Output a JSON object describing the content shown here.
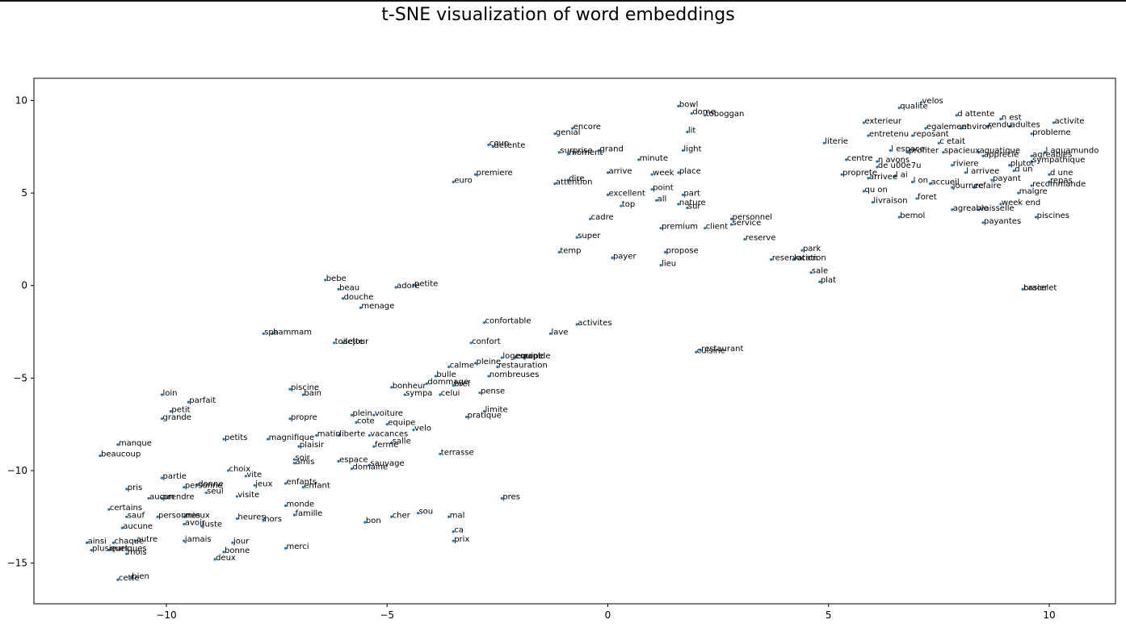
{
  "chart_data": {
    "type": "scatter",
    "title": "t-SNE visualization of word embeddings",
    "xlabel": "",
    "ylabel": "",
    "xlim": [
      -13.0,
      11.5
    ],
    "ylim": [
      -17.2,
      11.2
    ],
    "xticks": [
      -10,
      -5,
      0,
      5,
      10
    ],
    "yticks": [
      10,
      5,
      0,
      -5,
      -10,
      -15
    ],
    "xtick_labels": [
      "−10",
      "−5",
      "0",
      "5",
      "10"
    ],
    "ytick_labels": [
      "10",
      "5",
      "0",
      "−5",
      "−10",
      "−15"
    ],
    "point_color": "#1f77b4",
    "grid": false,
    "points": [
      {
        "label": "velos",
        "x": 7.1,
        "y": 9.9
      },
      {
        "label": "qualite",
        "x": 6.6,
        "y": 9.6
      },
      {
        "label": "bowl",
        "x": 1.6,
        "y": 9.7
      },
      {
        "label": "dome",
        "x": 1.9,
        "y": 9.3
      },
      {
        "label": "toboggan",
        "x": 2.2,
        "y": 9.2
      },
      {
        "label": "d attente",
        "x": 7.9,
        "y": 9.2
      },
      {
        "label": "n est",
        "x": 8.9,
        "y": 9.0
      },
      {
        "label": "activite",
        "x": 10.1,
        "y": 8.8
      },
      {
        "label": "exterieur",
        "x": 5.8,
        "y": 8.8
      },
      {
        "label": "egalement",
        "x": 7.2,
        "y": 8.5
      },
      {
        "label": "environ",
        "x": 8.0,
        "y": 8.5
      },
      {
        "label": "rendu",
        "x": 8.6,
        "y": 8.6
      },
      {
        "label": "adultes",
        "x": 9.1,
        "y": 8.6
      },
      {
        "label": "probleme",
        "x": 9.6,
        "y": 8.2
      },
      {
        "label": "entretenu",
        "x": 5.9,
        "y": 8.1
      },
      {
        "label": "reposant",
        "x": 6.9,
        "y": 8.1
      },
      {
        "label": "c etait",
        "x": 7.5,
        "y": 7.7
      },
      {
        "label": "literie",
        "x": 4.9,
        "y": 7.7
      },
      {
        "label": "l espace",
        "x": 6.4,
        "y": 7.3
      },
      {
        "label": "profiter",
        "x": 6.8,
        "y": 7.2
      },
      {
        "label": "spacieux",
        "x": 7.6,
        "y": 7.2
      },
      {
        "label": "aquatique",
        "x": 8.4,
        "y": 7.2
      },
      {
        "label": "apprecie",
        "x": 8.5,
        "y": 7.0
      },
      {
        "label": "l aquamundo",
        "x": 9.9,
        "y": 7.2
      },
      {
        "label": "agreables",
        "x": 9.6,
        "y": 7.0
      },
      {
        "label": "sympathique",
        "x": 9.6,
        "y": 6.7
      },
      {
        "label": "centre",
        "x": 5.4,
        "y": 6.8
      },
      {
        "label": "n avons",
        "x": 6.1,
        "y": 6.7
      },
      {
        "label": "de u00e7u",
        "x": 6.1,
        "y": 6.4
      },
      {
        "label": "riviere",
        "x": 7.8,
        "y": 6.5
      },
      {
        "label": "plutot",
        "x": 9.1,
        "y": 6.5
      },
      {
        "label": "d un",
        "x": 9.2,
        "y": 6.2
      },
      {
        "label": "proprete",
        "x": 5.3,
        "y": 6.0
      },
      {
        "label": "arrivee",
        "x": 5.9,
        "y": 5.8
      },
      {
        "label": "l ai",
        "x": 6.5,
        "y": 5.9
      },
      {
        "label": "l arrivee",
        "x": 8.1,
        "y": 6.1
      },
      {
        "label": "d une",
        "x": 10.0,
        "y": 6.0
      },
      {
        "label": "payant",
        "x": 8.7,
        "y": 5.7
      },
      {
        "label": "l on",
        "x": 6.9,
        "y": 5.6
      },
      {
        "label": "accueil",
        "x": 7.3,
        "y": 5.5
      },
      {
        "label": "journee",
        "x": 7.8,
        "y": 5.3
      },
      {
        "label": "refaire",
        "x": 8.3,
        "y": 5.3
      },
      {
        "label": "repas",
        "x": 10.0,
        "y": 5.6
      },
      {
        "label": "recommande",
        "x": 9.6,
        "y": 5.4
      },
      {
        "label": "qu on",
        "x": 5.8,
        "y": 5.1
      },
      {
        "label": "malgre",
        "x": 9.3,
        "y": 5.0
      },
      {
        "label": "foret",
        "x": 7.0,
        "y": 4.7
      },
      {
        "label": "livraison",
        "x": 6.0,
        "y": 4.5
      },
      {
        "label": "week end",
        "x": 8.9,
        "y": 4.4
      },
      {
        "label": "agreable",
        "x": 7.8,
        "y": 4.1
      },
      {
        "label": "vaisselle",
        "x": 8.4,
        "y": 4.1
      },
      {
        "label": "bemol",
        "x": 6.6,
        "y": 3.7
      },
      {
        "label": "piscines",
        "x": 9.7,
        "y": 3.7
      },
      {
        "label": "payantes",
        "x": 8.5,
        "y": 3.4
      },
      {
        "label": "lit",
        "x": 1.8,
        "y": 8.3
      },
      {
        "label": "light",
        "x": 1.7,
        "y": 7.3
      },
      {
        "label": "encore",
        "x": -0.8,
        "y": 8.5
      },
      {
        "label": "genial",
        "x": -1.2,
        "y": 8.2
      },
      {
        "label": "coup",
        "x": -2.7,
        "y": 7.6
      },
      {
        "label": "detente",
        "x": -2.6,
        "y": 7.5
      },
      {
        "label": "surprise",
        "x": -1.1,
        "y": 7.2
      },
      {
        "label": "moment",
        "x": -0.9,
        "y": 7.1
      },
      {
        "label": "grand",
        "x": -0.2,
        "y": 7.3
      },
      {
        "label": "minute",
        "x": 0.7,
        "y": 6.8
      },
      {
        "label": "premiere",
        "x": -3.0,
        "y": 6.0
      },
      {
        "label": "arrive",
        "x": 0.0,
        "y": 6.1
      },
      {
        "label": "week",
        "x": 1.0,
        "y": 6.0
      },
      {
        "label": "place",
        "x": 1.6,
        "y": 6.1
      },
      {
        "label": "euro",
        "x": -3.5,
        "y": 5.6
      },
      {
        "label": "dire",
        "x": -0.9,
        "y": 5.7
      },
      {
        "label": "attention",
        "x": -1.2,
        "y": 5.5
      },
      {
        "label": "point",
        "x": 1.0,
        "y": 5.2
      },
      {
        "label": "excellent",
        "x": 0.0,
        "y": 4.9
      },
      {
        "label": "part",
        "x": 1.7,
        "y": 4.9
      },
      {
        "label": "all",
        "x": 1.1,
        "y": 4.6
      },
      {
        "label": "top",
        "x": 0.3,
        "y": 4.3
      },
      {
        "label": "nature",
        "x": 1.6,
        "y": 4.4
      },
      {
        "label": "sur",
        "x": 1.8,
        "y": 4.2
      },
      {
        "label": "cadre",
        "x": -0.4,
        "y": 3.6
      },
      {
        "label": "personnel",
        "x": 2.8,
        "y": 3.6
      },
      {
        "label": "service",
        "x": 2.8,
        "y": 3.3
      },
      {
        "label": "client",
        "x": 2.2,
        "y": 3.1
      },
      {
        "label": "premium",
        "x": 1.2,
        "y": 3.1
      },
      {
        "label": "super",
        "x": -0.7,
        "y": 2.6
      },
      {
        "label": "reserve",
        "x": 3.1,
        "y": 2.5
      },
      {
        "label": "temp",
        "x": -1.1,
        "y": 1.8
      },
      {
        "label": "payer",
        "x": 0.1,
        "y": 1.5
      },
      {
        "label": "propose",
        "x": 1.3,
        "y": 1.8
      },
      {
        "label": "lieu",
        "x": 1.2,
        "y": 1.1
      },
      {
        "label": "park",
        "x": 4.4,
        "y": 1.9
      },
      {
        "label": "reservation",
        "x": 3.7,
        "y": 1.4
      },
      {
        "label": "location",
        "x": 4.2,
        "y": 1.4
      },
      {
        "label": "sale",
        "x": 4.6,
        "y": 0.7
      },
      {
        "label": "plat",
        "x": 4.8,
        "y": 0.2
      },
      {
        "label": "bracelet",
        "x": 9.4,
        "y": -0.2
      },
      {
        "label": "casier",
        "x": 9.4,
        "y": -0.2
      },
      {
        "label": "bebe",
        "x": -6.4,
        "y": 0.3
      },
      {
        "label": "beau",
        "x": -6.1,
        "y": -0.2
      },
      {
        "label": "adore",
        "x": -4.8,
        "y": -0.1
      },
      {
        "label": "petite",
        "x": -4.4,
        "y": 0.0
      },
      {
        "label": "douche",
        "x": -6.0,
        "y": -0.7
      },
      {
        "label": "menage",
        "x": -5.6,
        "y": -1.2
      },
      {
        "label": "confortable",
        "x": -2.8,
        "y": -2.0
      },
      {
        "label": "activites",
        "x": -0.7,
        "y": -2.1
      },
      {
        "label": "spa",
        "x": -7.8,
        "y": -2.6
      },
      {
        "label": "hammam",
        "x": -7.6,
        "y": -2.6
      },
      {
        "label": "lave",
        "x": -1.3,
        "y": -2.6
      },
      {
        "label": "toilette",
        "x": -6.2,
        "y": -3.1
      },
      {
        "label": "sejour",
        "x": -6.0,
        "y": -3.1
      },
      {
        "label": "confort",
        "x": -3.1,
        "y": -3.1
      },
      {
        "label": "restaurant",
        "x": 2.1,
        "y": -3.5
      },
      {
        "label": "cuisine",
        "x": 2.0,
        "y": -3.6
      },
      {
        "label": "logement",
        "x": -2.4,
        "y": -3.9
      },
      {
        "label": "equipe",
        "x": -2.1,
        "y": -3.9
      },
      {
        "label": "rapide",
        "x": -1.9,
        "y": -3.9
      },
      {
        "label": "pleine",
        "x": -3.0,
        "y": -4.2
      },
      {
        "label": "calme",
        "x": -3.6,
        "y": -4.4
      },
      {
        "label": "restauration",
        "x": -2.5,
        "y": -4.4
      },
      {
        "label": "bulle",
        "x": -3.9,
        "y": -4.9
      },
      {
        "label": "nombreuses",
        "x": -2.7,
        "y": -4.9
      },
      {
        "label": "dommage",
        "x": -4.1,
        "y": -5.3
      },
      {
        "label": "bonheur",
        "x": -4.9,
        "y": -5.5
      },
      {
        "label": "bref",
        "x": -3.5,
        "y": -5.4
      },
      {
        "label": "sympa",
        "x": -4.6,
        "y": -5.9
      },
      {
        "label": "celui",
        "x": -3.8,
        "y": -5.9
      },
      {
        "label": "pense",
        "x": -2.9,
        "y": -5.8
      },
      {
        "label": "piscine",
        "x": -7.2,
        "y": -5.6
      },
      {
        "label": "bain",
        "x": -6.9,
        "y": -5.9
      },
      {
        "label": "loin",
        "x": -10.1,
        "y": -5.9
      },
      {
        "label": "parfait",
        "x": -9.5,
        "y": -6.3
      },
      {
        "label": "petit",
        "x": -9.9,
        "y": -6.8
      },
      {
        "label": "grande",
        "x": -10.1,
        "y": -7.2
      },
      {
        "label": "limite",
        "x": -2.8,
        "y": -6.8
      },
      {
        "label": "pratique",
        "x": -3.2,
        "y": -7.1
      },
      {
        "label": "plein",
        "x": -5.8,
        "y": -7.0
      },
      {
        "label": "voiture",
        "x": -5.3,
        "y": -7.0
      },
      {
        "label": "propre",
        "x": -7.2,
        "y": -7.2
      },
      {
        "label": "cote",
        "x": -5.7,
        "y": -7.4
      },
      {
        "label": "equipe",
        "x": -5.0,
        "y": -7.5
      },
      {
        "label": "velo",
        "x": -4.4,
        "y": -7.8
      },
      {
        "label": "matin",
        "x": -6.6,
        "y": -8.1
      },
      {
        "label": "liberte",
        "x": -6.1,
        "y": -8.1
      },
      {
        "label": "vacances",
        "x": -5.4,
        "y": -8.1
      },
      {
        "label": "petits",
        "x": -8.7,
        "y": -8.3
      },
      {
        "label": "magnifique",
        "x": -7.7,
        "y": -8.3
      },
      {
        "label": "salle",
        "x": -4.9,
        "y": -8.5
      },
      {
        "label": "ferme",
        "x": -5.3,
        "y": -8.7
      },
      {
        "label": "plaisir",
        "x": -7.0,
        "y": -8.7
      },
      {
        "label": "terrasse",
        "x": -3.8,
        "y": -9.1
      },
      {
        "label": "manque",
        "x": -11.1,
        "y": -8.6
      },
      {
        "label": "beaucoup",
        "x": -11.5,
        "y": -9.2
      },
      {
        "label": "soir",
        "x": -7.1,
        "y": -9.4
      },
      {
        "label": "amis",
        "x": -7.1,
        "y": -9.6
      },
      {
        "label": "espace",
        "x": -6.1,
        "y": -9.5
      },
      {
        "label": "sauvage",
        "x": -5.4,
        "y": -9.7
      },
      {
        "label": "domaine",
        "x": -5.8,
        "y": -9.9
      },
      {
        "label": "choix",
        "x": -8.6,
        "y": -10.0
      },
      {
        "label": "vite",
        "x": -8.2,
        "y": -10.3
      },
      {
        "label": "partie",
        "x": -10.1,
        "y": -10.4
      },
      {
        "label": "enfants",
        "x": -7.3,
        "y": -10.7
      },
      {
        "label": "enfant",
        "x": -6.9,
        "y": -10.9
      },
      {
        "label": "donne",
        "x": -9.3,
        "y": -10.8
      },
      {
        "label": "personne",
        "x": -9.6,
        "y": -10.9
      },
      {
        "label": "jeux",
        "x": -8.0,
        "y": -10.8
      },
      {
        "label": "pris",
        "x": -10.9,
        "y": -11.0
      },
      {
        "label": "seul",
        "x": -9.1,
        "y": -11.2
      },
      {
        "label": "visite",
        "x": -8.4,
        "y": -11.4
      },
      {
        "label": "aucun",
        "x": -10.4,
        "y": -11.5
      },
      {
        "label": "prendre",
        "x": -10.1,
        "y": -11.5
      },
      {
        "label": "pres",
        "x": -2.4,
        "y": -11.5
      },
      {
        "label": "certains",
        "x": -11.3,
        "y": -12.1
      },
      {
        "label": "monde",
        "x": -7.3,
        "y": -11.9
      },
      {
        "label": "sauf",
        "x": -10.9,
        "y": -12.5
      },
      {
        "label": "personnes",
        "x": -10.2,
        "y": -12.5
      },
      {
        "label": "mieux",
        "x": -9.6,
        "y": -12.5
      },
      {
        "label": "famille",
        "x": -7.1,
        "y": -12.4
      },
      {
        "label": "sou",
        "x": -4.3,
        "y": -12.3
      },
      {
        "label": "cher",
        "x": -4.9,
        "y": -12.5
      },
      {
        "label": "mal",
        "x": -3.6,
        "y": -12.5
      },
      {
        "label": "heures",
        "x": -8.4,
        "y": -12.6
      },
      {
        "label": "hors",
        "x": -7.8,
        "y": -12.7
      },
      {
        "label": "bon",
        "x": -5.5,
        "y": -12.8
      },
      {
        "label": "avoir",
        "x": -9.6,
        "y": -12.9
      },
      {
        "label": "juste",
        "x": -9.2,
        "y": -13.0
      },
      {
        "label": "aucune",
        "x": -11.0,
        "y": -13.1
      },
      {
        "label": "ca",
        "x": -3.5,
        "y": -13.3
      },
      {
        "label": "autre",
        "x": -10.7,
        "y": -13.8
      },
      {
        "label": "jamais",
        "x": -9.6,
        "y": -13.8
      },
      {
        "label": "jour",
        "x": -8.5,
        "y": -13.9
      },
      {
        "label": "prix",
        "x": -3.5,
        "y": -13.8
      },
      {
        "label": "ainsi",
        "x": -11.8,
        "y": -13.9
      },
      {
        "label": "chaque",
        "x": -11.2,
        "y": -13.9
      },
      {
        "label": "merci",
        "x": -7.3,
        "y": -14.2
      },
      {
        "label": "plusieurs",
        "x": -11.7,
        "y": -14.3
      },
      {
        "label": "quelques",
        "x": -11.3,
        "y": -14.3
      },
      {
        "label": "mois",
        "x": -10.9,
        "y": -14.5
      },
      {
        "label": "bonne",
        "x": -8.7,
        "y": -14.4
      },
      {
        "label": "deux",
        "x": -8.9,
        "y": -14.8
      },
      {
        "label": "cette",
        "x": -11.1,
        "y": -15.9
      },
      {
        "label": "bien",
        "x": -10.8,
        "y": -15.8
      }
    ]
  }
}
